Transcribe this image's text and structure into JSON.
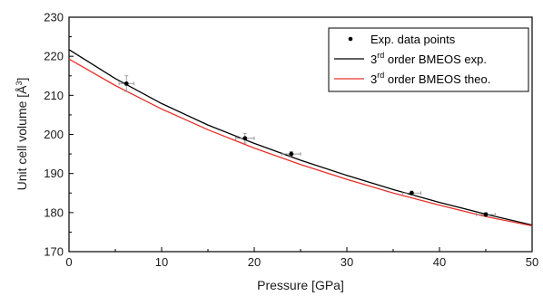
{
  "chart_data": {
    "type": "scatter",
    "xlabel": "Pressure [GPa]",
    "ylabel_main": "Unit cell volume [Å",
    "ylabel_sup": "3",
    "ylabel_end": "]",
    "xlim": [
      0,
      50
    ],
    "ylim": [
      170,
      230
    ],
    "x_ticks": [
      "0",
      "10",
      "20",
      "30",
      "40",
      "50"
    ],
    "y_ticks": [
      "170",
      "180",
      "190",
      "200",
      "210",
      "220",
      "230"
    ],
    "grid": false,
    "legend_position": "top-right",
    "legend": [
      {
        "marker": "point",
        "color": "#000000",
        "text_main": "Exp. data points",
        "text_sup": "",
        "text_end": ""
      },
      {
        "marker": "line",
        "color": "#000000",
        "text_main": "3",
        "text_sup": "rd",
        "text_end": " order BMEOS exp."
      },
      {
        "marker": "line",
        "color": "#e8312a",
        "text_main": "3",
        "text_sup": "rd",
        "text_end": " order BMEOS theo."
      }
    ],
    "series": [
      {
        "name": "Exp. data points",
        "kind": "points",
        "color": "#000000",
        "points": [
          {
            "x": 6.2,
            "y": 213.0,
            "xerr": 0.8,
            "yerr": 2.0
          },
          {
            "x": 19.0,
            "y": 199.0,
            "xerr": 1.0,
            "yerr": 1.2
          },
          {
            "x": 24.0,
            "y": 195.0,
            "xerr": 1.0,
            "yerr": 0.6
          },
          {
            "x": 37.0,
            "y": 185.0,
            "xerr": 1.0,
            "yerr": 0.5
          },
          {
            "x": 45.0,
            "y": 179.5,
            "xerr": 1.0,
            "yerr": 0.5
          }
        ]
      },
      {
        "name": "3rd order BMEOS exp.",
        "kind": "line",
        "color": "#000000",
        "x": [
          0,
          5,
          10,
          15,
          20,
          25,
          30,
          35,
          40,
          45,
          50
        ],
        "y": [
          221.7,
          214.3,
          207.9,
          202.4,
          197.7,
          193.4,
          189.5,
          185.9,
          182.6,
          179.6,
          176.8
        ]
      },
      {
        "name": "3rd order BMEOS theo.",
        "kind": "line",
        "color": "#e8312a",
        "x": [
          0,
          5,
          10,
          15,
          20,
          25,
          30,
          35,
          40,
          45,
          50
        ],
        "y": [
          219.3,
          212.5,
          206.5,
          201.2,
          196.5,
          192.3,
          188.5,
          185.0,
          181.9,
          179.0,
          176.6
        ]
      }
    ]
  }
}
